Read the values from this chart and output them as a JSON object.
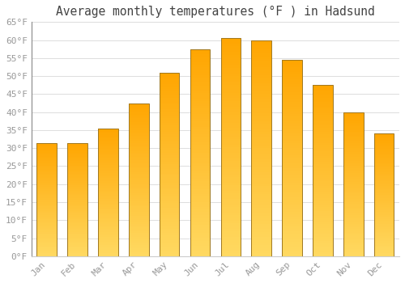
{
  "months": [
    "Jan",
    "Feb",
    "Mar",
    "Apr",
    "May",
    "Jun",
    "Jul",
    "Aug",
    "Sep",
    "Oct",
    "Nov",
    "Dec"
  ],
  "values": [
    31.5,
    31.5,
    35.5,
    42.5,
    51.0,
    57.5,
    60.5,
    60.0,
    54.5,
    47.5,
    40.0,
    34.0
  ],
  "bar_color_bottom": "#FFD060",
  "bar_color_top": "#FFA500",
  "bar_edge_color": "#B8860B",
  "title": "Average monthly temperatures (°F ) in Hadsund",
  "ylim": [
    0,
    65
  ],
  "yticks": [
    0,
    5,
    10,
    15,
    20,
    25,
    30,
    35,
    40,
    45,
    50,
    55,
    60,
    65
  ],
  "ytick_labels": [
    "0°F",
    "5°F",
    "10°F",
    "15°F",
    "20°F",
    "25°F",
    "30°F",
    "35°F",
    "40°F",
    "45°F",
    "50°F",
    "55°F",
    "60°F",
    "65°F"
  ],
  "background_color": "#ffffff",
  "grid_color": "#dddddd",
  "title_fontsize": 10.5,
  "tick_fontsize": 8,
  "font_family": "monospace",
  "tick_color": "#999999",
  "title_color": "#444444"
}
